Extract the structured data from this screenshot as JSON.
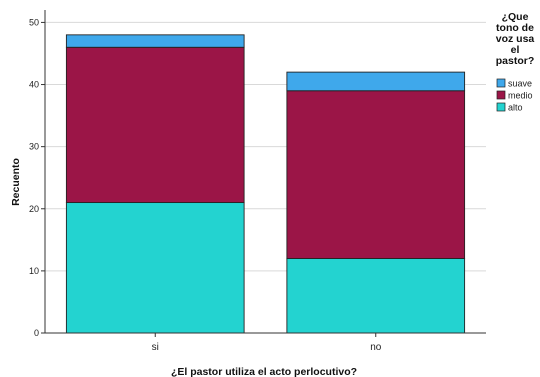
{
  "chart_data": {
    "type": "bar",
    "stacked": true,
    "categories": [
      "si",
      "no"
    ],
    "series": [
      {
        "name": "alto",
        "values": [
          21,
          12
        ],
        "color": "#23D3D0"
      },
      {
        "name": "medio",
        "values": [
          25,
          27
        ],
        "color": "#9B1547"
      },
      {
        "name": "suave",
        "values": [
          2,
          3
        ],
        "color": "#3FA8EB"
      }
    ],
    "xlabel": "¿El pastor utiliza el acto perlocutivo?",
    "ylabel": "Recuento",
    "ylim": [
      0,
      52
    ],
    "yticks": [
      0,
      10,
      20,
      30,
      40,
      50
    ],
    "grid": true,
    "legend": {
      "title_lines": [
        "¿Que",
        "tono de",
        "voz usa",
        "el",
        "pastor?"
      ],
      "order": [
        "suave",
        "medio",
        "alto"
      ],
      "placement": "top-right"
    }
  }
}
